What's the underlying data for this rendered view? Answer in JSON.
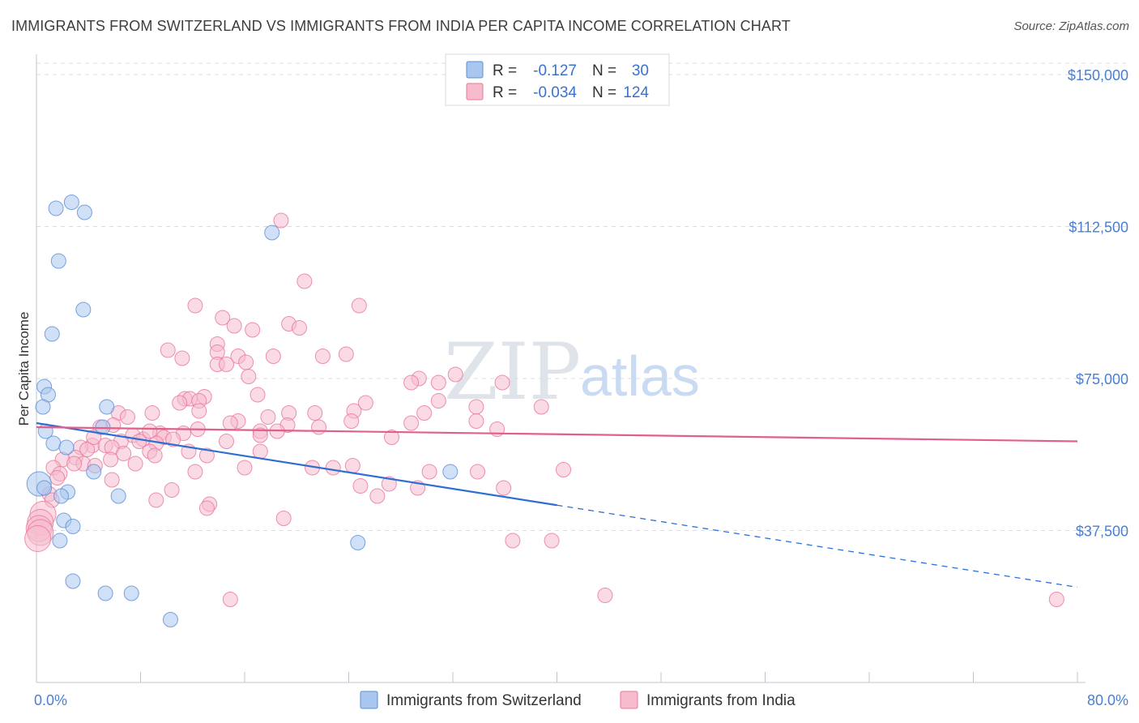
{
  "title": "IMMIGRANTS FROM SWITZERLAND VS IMMIGRANTS FROM INDIA PER CAPITA INCOME CORRELATION CHART",
  "source": "Source: ZipAtlas.com",
  "colors": {
    "switzerland": "#5b8fd6",
    "switzerland_fill": "#a9c7ee",
    "india": "#e8779a",
    "india_fill": "#f6bccd",
    "trend_switzerland": "#2f6fcf",
    "trend_india": "#e0608a",
    "axis_text": "#4a7fd0",
    "grid": "#d9dde3"
  },
  "legend": {
    "rows": [
      {
        "r_label": "R =",
        "r_value": "-0.127",
        "n_label": "N =",
        "n_value": "30"
      },
      {
        "r_label": "R =",
        "r_value": "-0.034",
        "n_label": "N =",
        "n_value": "124"
      }
    ]
  },
  "bottom_legend": [
    "Immigrants from Switzerland",
    "Immigrants from India"
  ],
  "watermark": {
    "zip": "ZIP",
    "atlas": "atlas"
  },
  "chart_data": {
    "type": "scatter",
    "title": "IMMIGRANTS FROM SWITZERLAND VS IMMIGRANTS FROM INDIA PER CAPITA INCOME CORRELATION CHART",
    "xlabel": "",
    "ylabel": "Per Capita Income",
    "xlim": [
      0,
      80
    ],
    "ylim": [
      0,
      155000
    ],
    "x_tick_labels": [
      "0.0%",
      "80.0%"
    ],
    "y_ticks": [
      37500,
      75000,
      112500,
      150000
    ],
    "y_tick_labels": [
      "$37,500",
      "$75,000",
      "$112,500",
      "$150,000"
    ],
    "grid": true,
    "series": [
      {
        "name": "Immigrants from Switzerland",
        "r": -0.127,
        "n": 30,
        "trend": {
          "x0": 0,
          "y0": 64000,
          "x1": 80,
          "y1": 23500,
          "solid_until_x": 40
        },
        "points": [
          [
            1.5,
            117000
          ],
          [
            2.7,
            118500
          ],
          [
            3.7,
            116000
          ],
          [
            1.7,
            104000
          ],
          [
            3.6,
            92000
          ],
          [
            1.2,
            86000
          ],
          [
            18.1,
            111000
          ],
          [
            0.6,
            73000
          ],
          [
            0.9,
            71000
          ],
          [
            0.5,
            68000
          ],
          [
            5.4,
            68000
          ],
          [
            5.1,
            63000
          ],
          [
            0.7,
            62000
          ],
          [
            1.3,
            59000
          ],
          [
            2.3,
            58000
          ],
          [
            0.2,
            49000
          ],
          [
            0.6,
            48000
          ],
          [
            2.4,
            47000
          ],
          [
            1.9,
            46000
          ],
          [
            4.4,
            52000
          ],
          [
            6.3,
            46000
          ],
          [
            31.8,
            52000
          ],
          [
            2.1,
            40000
          ],
          [
            2.8,
            38500
          ],
          [
            1.8,
            35000
          ],
          [
            24.7,
            34500
          ],
          [
            2.8,
            25000
          ],
          [
            5.3,
            22000
          ],
          [
            7.3,
            22000
          ],
          [
            10.3,
            15500
          ]
        ]
      },
      {
        "name": "Immigrants from India",
        "r": -0.034,
        "n": 124,
        "trend": {
          "x0": 0,
          "y0": 63000,
          "x1": 80,
          "y1": 59500
        },
        "points": [
          [
            18.8,
            114000
          ],
          [
            20.6,
            99000
          ],
          [
            12.2,
            93000
          ],
          [
            24.8,
            93000
          ],
          [
            14.3,
            90000
          ],
          [
            19.4,
            88500
          ],
          [
            15.2,
            88000
          ],
          [
            20.2,
            87500
          ],
          [
            16.6,
            87000
          ],
          [
            13.9,
            83500
          ],
          [
            10.1,
            82000
          ],
          [
            13.9,
            81500
          ],
          [
            23.8,
            81000
          ],
          [
            22.0,
            80500
          ],
          [
            15.5,
            80500
          ],
          [
            18.2,
            80500
          ],
          [
            11.2,
            80000
          ],
          [
            16.1,
            79000
          ],
          [
            13.9,
            78500
          ],
          [
            14.6,
            78500
          ],
          [
            16.3,
            75500
          ],
          [
            32.2,
            76000
          ],
          [
            29.4,
            75000
          ],
          [
            28.8,
            74000
          ],
          [
            30.9,
            74000
          ],
          [
            35.8,
            74000
          ],
          [
            17.0,
            71000
          ],
          [
            12.9,
            70500
          ],
          [
            11.4,
            70000
          ],
          [
            11.8,
            70000
          ],
          [
            12.5,
            69500
          ],
          [
            11.0,
            69000
          ],
          [
            25.3,
            69000
          ],
          [
            33.8,
            68000
          ],
          [
            12.5,
            67000
          ],
          [
            24.4,
            67000
          ],
          [
            6.3,
            66500
          ],
          [
            8.9,
            66500
          ],
          [
            19.4,
            66500
          ],
          [
            29.8,
            66500
          ],
          [
            7.0,
            65500
          ],
          [
            17.8,
            65500
          ],
          [
            15.5,
            64500
          ],
          [
            24.2,
            64500
          ],
          [
            33.8,
            64500
          ],
          [
            28.8,
            64000
          ],
          [
            5.9,
            63500
          ],
          [
            19.3,
            63500
          ],
          [
            4.9,
            63000
          ],
          [
            21.7,
            63000
          ],
          [
            12.4,
            62500
          ],
          [
            35.4,
            62500
          ],
          [
            17.2,
            62000
          ],
          [
            18.5,
            62000
          ],
          [
            11.3,
            61500
          ],
          [
            9.5,
            61500
          ],
          [
            7.4,
            61000
          ],
          [
            17.2,
            61000
          ],
          [
            27.3,
            60500
          ],
          [
            9.8,
            60500
          ],
          [
            8.2,
            60000
          ],
          [
            10.5,
            60000
          ],
          [
            6.5,
            59500
          ],
          [
            14.6,
            59500
          ],
          [
            7.9,
            59500
          ],
          [
            9.2,
            59000
          ],
          [
            4.3,
            58500
          ],
          [
            5.3,
            58500
          ],
          [
            5.8,
            58000
          ],
          [
            3.4,
            58000
          ],
          [
            3.9,
            57500
          ],
          [
            8.7,
            57000
          ],
          [
            11.7,
            57000
          ],
          [
            17.2,
            57000
          ],
          [
            6.7,
            56500
          ],
          [
            9.1,
            56000
          ],
          [
            13.1,
            56000
          ],
          [
            3.0,
            55500
          ],
          [
            5.7,
            55000
          ],
          [
            2.0,
            55000
          ],
          [
            3.6,
            54000
          ],
          [
            2.9,
            54000
          ],
          [
            7.6,
            54000
          ],
          [
            4.5,
            53500
          ],
          [
            1.3,
            53000
          ],
          [
            16.0,
            53000
          ],
          [
            21.2,
            53000
          ],
          [
            22.8,
            53000
          ],
          [
            24.3,
            53500
          ],
          [
            30.2,
            52000
          ],
          [
            33.9,
            52000
          ],
          [
            40.5,
            52500
          ],
          [
            12.2,
            52000
          ],
          [
            1.8,
            51500
          ],
          [
            1.6,
            50500
          ],
          [
            5.8,
            50000
          ],
          [
            27.1,
            49000
          ],
          [
            24.9,
            48500
          ],
          [
            29.3,
            48000
          ],
          [
            35.9,
            48000
          ],
          [
            10.4,
            47500
          ],
          [
            1.0,
            46500
          ],
          [
            1.2,
            45000
          ],
          [
            9.2,
            45000
          ],
          [
            26.2,
            46000
          ],
          [
            13.3,
            44000
          ],
          [
            13.1,
            43000
          ],
          [
            0.5,
            41500
          ],
          [
            19.0,
            40500
          ],
          [
            0.3,
            39500
          ],
          [
            0.2,
            38000
          ],
          [
            0.3,
            37000
          ],
          [
            0.1,
            35500
          ],
          [
            36.6,
            35000
          ],
          [
            39.6,
            35000
          ],
          [
            14.9,
            20500
          ],
          [
            43.7,
            21500
          ],
          [
            78.4,
            20500
          ],
          [
            4.4,
            60500
          ],
          [
            14.9,
            64000
          ],
          [
            21.4,
            66500
          ],
          [
            8.7,
            62000
          ],
          [
            30.9,
            69500
          ],
          [
            38.8,
            68000
          ]
        ]
      }
    ]
  }
}
